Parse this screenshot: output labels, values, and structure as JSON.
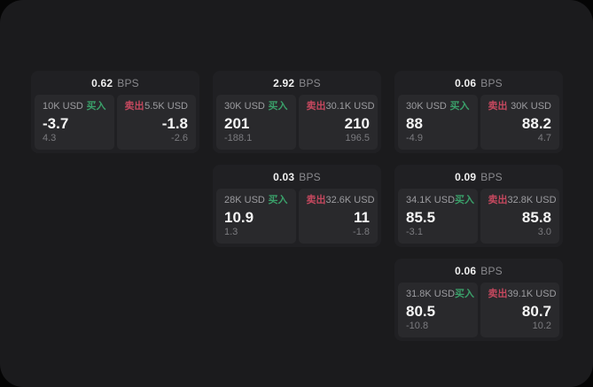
{
  "window": {
    "background": "#050505",
    "surface_color": "#1b1b1d",
    "card_color": "#202023",
    "pane_color": "#29292c"
  },
  "labels": {
    "bps": "BPS",
    "buy": "买入",
    "sell": "卖出"
  },
  "colors": {
    "buy_green": "#3aa06a",
    "sell_red": "#c4485e",
    "value_white": "#f5f5f5",
    "muted_gray": "#9c9ca0",
    "sub_gray": "#7b7b7f"
  },
  "cards": [
    {
      "bps": "0.62",
      "buy": {
        "amount": "10K USD",
        "value": "-3.7",
        "sub": "4.3"
      },
      "sell": {
        "amount": "5.5K USD",
        "value": "-1.8",
        "sub": "-2.6"
      }
    },
    {
      "bps": "2.92",
      "buy": {
        "amount": "30K USD",
        "value": "201",
        "sub": "-188.1"
      },
      "sell": {
        "amount": "30.1K USD",
        "value": "210",
        "sub": "196.5"
      }
    },
    {
      "bps": "0.06",
      "buy": {
        "amount": "30K USD",
        "value": "88",
        "sub": "-4.9"
      },
      "sell": {
        "amount": "30K USD",
        "value": "88.2",
        "sub": "4.7"
      }
    },
    {
      "bps": "0.03",
      "buy": {
        "amount": "28K USD",
        "value": "10.9",
        "sub": "1.3"
      },
      "sell": {
        "amount": "32.6K USD",
        "value": "11",
        "sub": "-1.8"
      }
    },
    {
      "bps": "0.09",
      "buy": {
        "amount": "34.1K USD",
        "value": "85.5",
        "sub": "-3.1"
      },
      "sell": {
        "amount": "32.8K USD",
        "value": "85.8",
        "sub": "3.0"
      }
    },
    {
      "bps": "0.06",
      "buy": {
        "amount": "31.8K USD",
        "value": "80.5",
        "sub": "-10.8"
      },
      "sell": {
        "amount": "39.1K USD",
        "value": "80.7",
        "sub": "10.2"
      }
    }
  ]
}
